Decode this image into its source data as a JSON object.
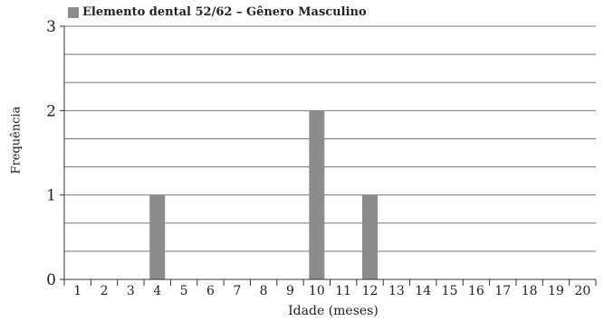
{
  "chart_data": {
    "type": "bar",
    "title": "",
    "xlabel": "Idade (meses)",
    "ylabel": "Frequência",
    "categories": [
      "1",
      "2",
      "3",
      "4",
      "5",
      "6",
      "7",
      "8",
      "9",
      "10",
      "11",
      "12",
      "13",
      "14",
      "15",
      "16",
      "17",
      "18",
      "19",
      "20"
    ],
    "series": [
      {
        "name": "Elemento dental 52/62 – Gênero Masculino",
        "values": [
          0,
          0,
          0,
          1,
          0,
          0,
          0,
          0,
          0,
          2,
          0,
          1,
          0,
          0,
          0,
          0,
          0,
          0,
          0,
          0
        ]
      }
    ],
    "ylim": [
      0,
      3
    ],
    "yticks": [
      "0",
      "1",
      "2",
      "3"
    ],
    "grid": true,
    "legend_position": "top-left",
    "colors": {
      "bar": "#8c8c8c",
      "grid": "#777777",
      "axis": "#333333"
    }
  }
}
